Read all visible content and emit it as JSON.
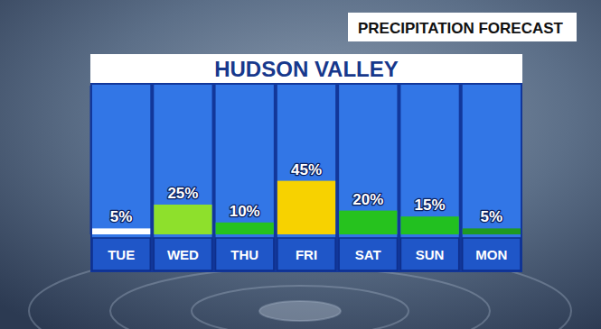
{
  "chart_data": {
    "type": "bar",
    "title": "HUDSON VALLEY",
    "subtitle": "PRECIPITATION FORECAST",
    "categories": [
      "TUE",
      "WED",
      "THU",
      "FRI",
      "SAT",
      "SUN",
      "MON"
    ],
    "values": [
      5,
      25,
      10,
      45,
      20,
      15,
      5
    ],
    "value_labels": [
      "5%",
      "25%",
      "10%",
      "45%",
      "20%",
      "15%",
      "5%"
    ],
    "colors": [
      "#ffffff",
      "#8ee02c",
      "#26c21e",
      "#f7d200",
      "#26c21e",
      "#22c020",
      "#1f9a22"
    ],
    "ylim": [
      0,
      125
    ],
    "data_labels": true,
    "tick_labels": "x",
    "grid": false
  }
}
